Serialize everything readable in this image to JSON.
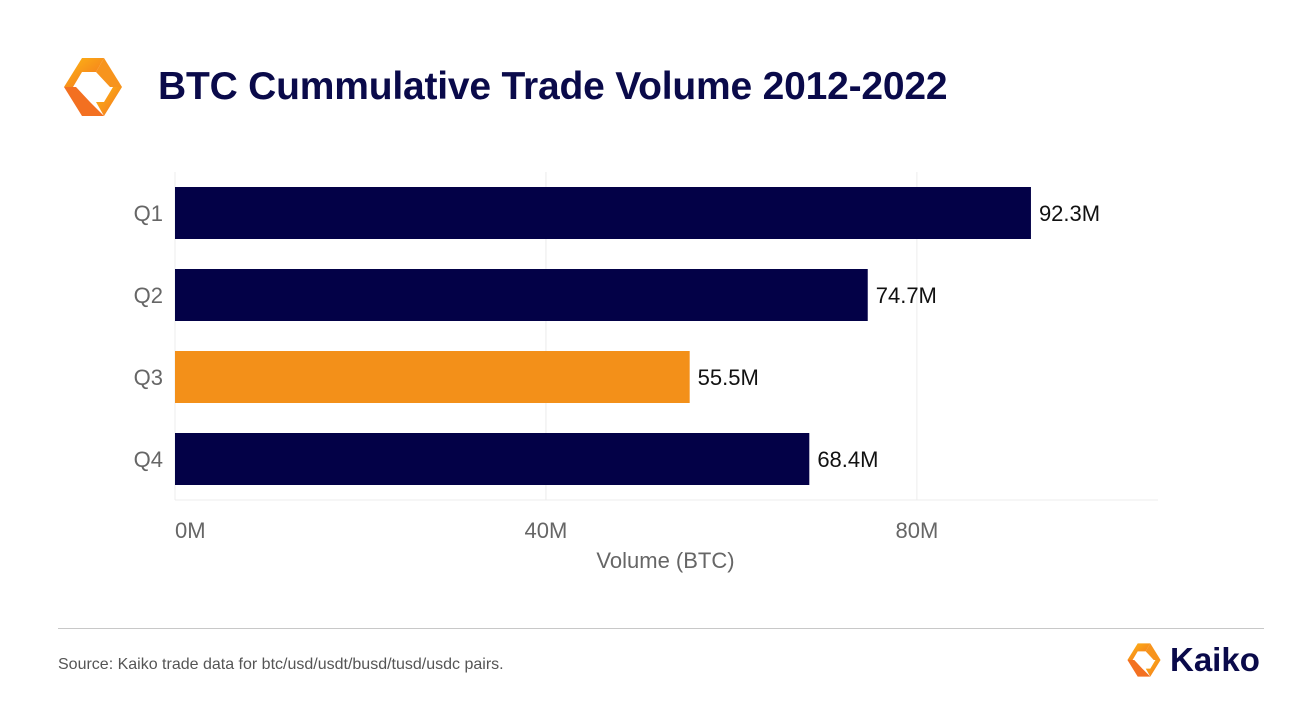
{
  "header": {
    "title": "BTC Cummulative Trade Volume 2012-2022",
    "logo_icon": "kaiko-logo-icon"
  },
  "colors": {
    "primary": "#030147",
    "highlight": "#F39019",
    "title": "#0a0a4a",
    "grid": "#ececec",
    "tick_text": "#666666",
    "value_text": "#111111"
  },
  "chart_data": {
    "type": "bar",
    "orientation": "horizontal",
    "categories": [
      "Q1",
      "Q2",
      "Q3",
      "Q4"
    ],
    "values": [
      92.3,
      74.7,
      55.5,
      68.4
    ],
    "data_labels": [
      "92.3M",
      "74.7M",
      "55.5M",
      "68.4M"
    ],
    "bar_colors": [
      "#030147",
      "#030147",
      "#F39019",
      "#030147"
    ],
    "xlabel": "Volume (BTC)",
    "ylabel": "",
    "xlim": [
      0,
      106
    ],
    "x_ticks": [
      0,
      40,
      80
    ],
    "x_tick_labels": [
      "0M",
      "40M",
      "80M"
    ],
    "grid": true,
    "legend": "none"
  },
  "footer": {
    "source": "Source: Kaiko trade data for btc/usd/usdt/busd/tusd/usdc pairs.",
    "brand_name": "Kaiko",
    "brand_icon": "kaiko-logo-icon"
  }
}
